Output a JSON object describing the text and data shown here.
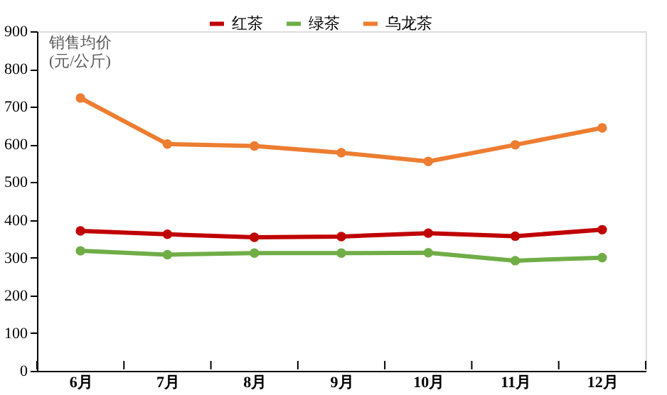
{
  "chart_data": {
    "type": "line",
    "ylabel": "销售均价\n(元/公斤)",
    "categories": [
      "6月",
      "7月",
      "8月",
      "9月",
      "10月",
      "11月",
      "12月"
    ],
    "series": [
      {
        "name": "红茶",
        "color": "#c00000",
        "values": [
          371,
          362,
          354,
          356,
          365,
          357,
          374
        ]
      },
      {
        "name": "绿茶",
        "color": "#70ad47",
        "values": [
          318,
          308,
          312,
          312,
          313,
          292,
          300
        ]
      },
      {
        "name": "乌龙茶",
        "color": "#ed7d31",
        "values": [
          723,
          601,
          596,
          578,
          555,
          599,
          644
        ]
      }
    ],
    "ylim": [
      0,
      900
    ],
    "yticks": [
      0,
      100,
      200,
      300,
      400,
      500,
      600,
      700,
      800,
      900
    ],
    "grid": false,
    "legend": "top",
    "marker": "circle",
    "line_style": "solid"
  }
}
